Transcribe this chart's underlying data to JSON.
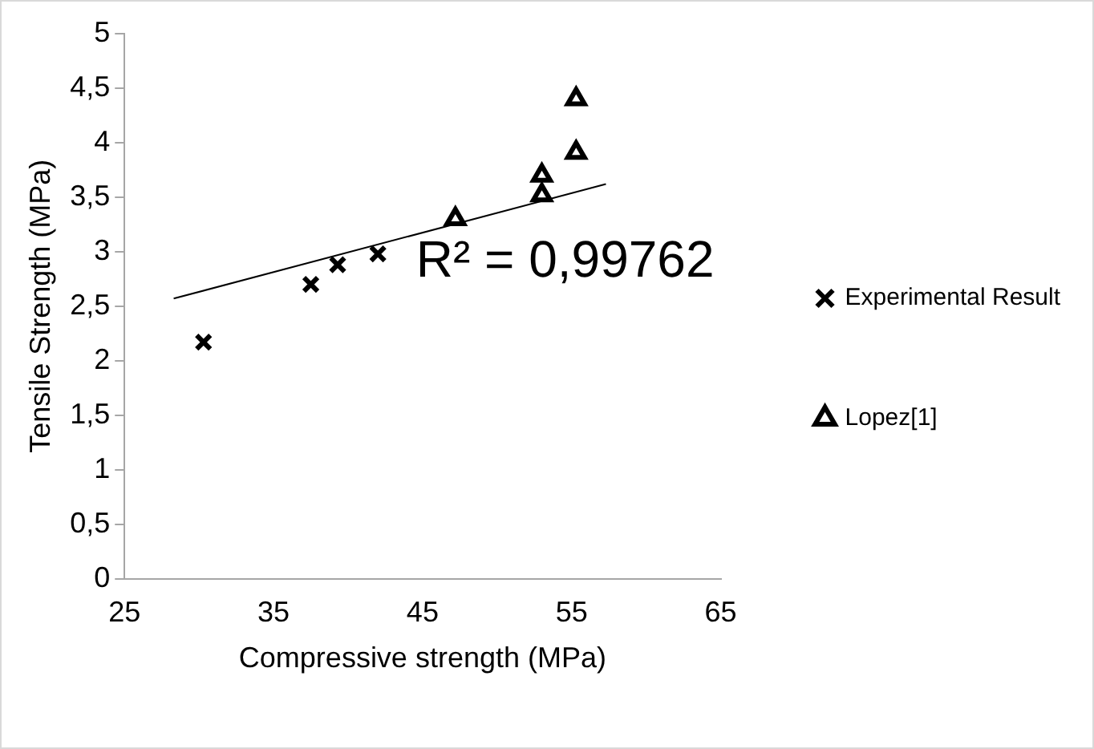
{
  "chart_data": {
    "type": "scatter",
    "xlabel": "Compressive strength (MPa)",
    "ylabel": "Tensile Strength (MPa)",
    "xlim": [
      25,
      65
    ],
    "xticks": [
      25,
      35,
      45,
      55,
      65
    ],
    "ylim": [
      0,
      5
    ],
    "yticks": [
      0,
      {
        "value": 0.5,
        "label": "0,5"
      },
      1,
      {
        "value": 1.5,
        "label": "1,5"
      },
      2,
      {
        "value": 2.5,
        "label": "2,5"
      },
      3,
      {
        "value": 3.5,
        "label": "3,5"
      },
      4,
      {
        "value": 4.5,
        "label": "4,5"
      },
      5
    ],
    "grid": false,
    "legend": "right",
    "series": [
      {
        "name": "Experimental Result",
        "color": "#000000",
        "marker": "cross",
        "x": [
          30.3,
          37.5,
          39.3,
          42.0
        ],
        "values": [
          2.17,
          2.7,
          2.88,
          2.98
        ]
      },
      {
        "name": "Lopez[1]",
        "color": "#000000",
        "marker": "triangle",
        "x": [
          47.2,
          53.0,
          53.0,
          55.3,
          55.3
        ],
        "values": [
          3.3,
          3.52,
          3.7,
          3.91,
          4.4
        ]
      },
      {
        "type": "line",
        "color": "#000000",
        "marker": "none",
        "x": [
          28.3,
          57.3
        ],
        "values": [
          2.57,
          3.62
        ]
      }
    ],
    "annotations": [
      "R² = 0,99762"
    ]
  }
}
